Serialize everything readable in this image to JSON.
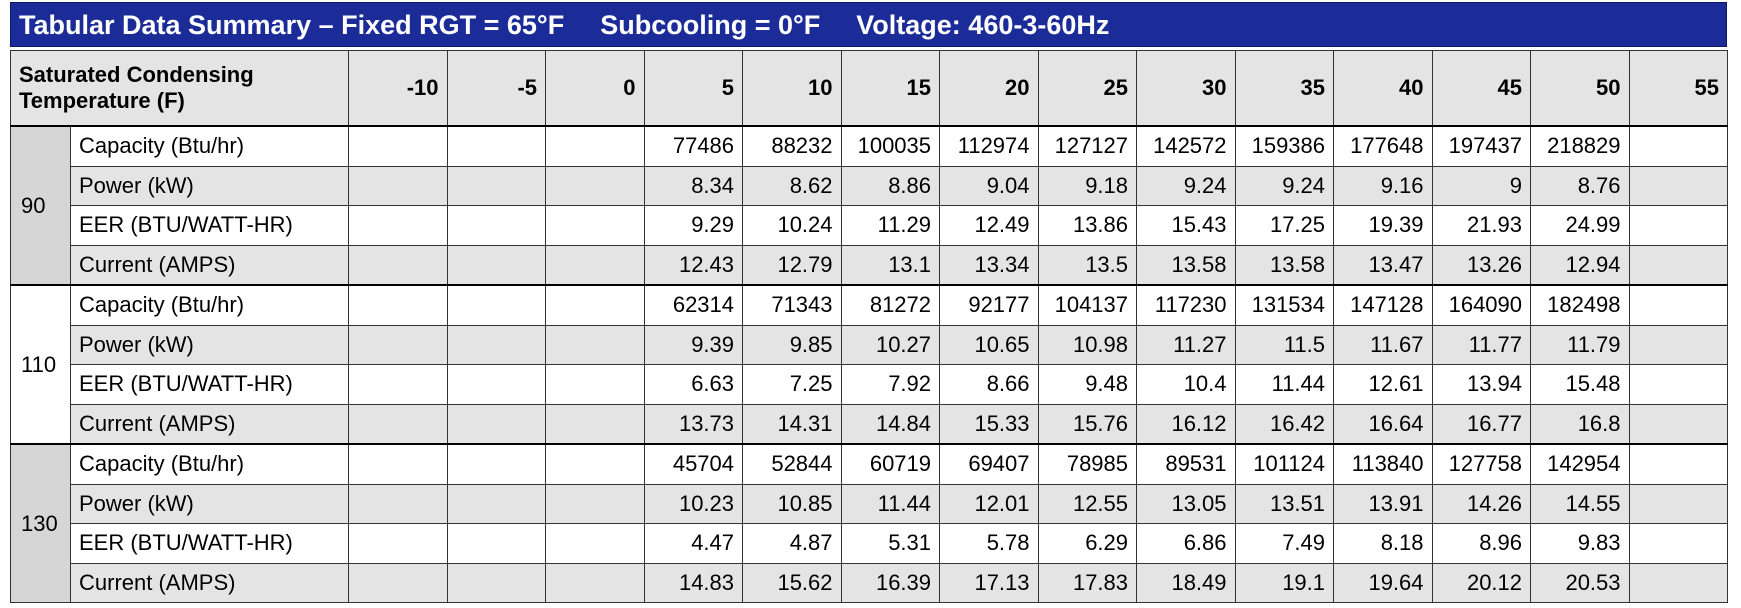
{
  "header": {
    "title": "Tabular Data Summary – Fixed RGT = 65°F",
    "subcooling": "Subcooling = 0°F",
    "voltage": "Voltage: 460-3-60Hz"
  },
  "table": {
    "header_label": "Saturated Condensing Temperature (F)",
    "columns": [
      -10,
      -5,
      0,
      5,
      10,
      15,
      20,
      25,
      30,
      35,
      40,
      45,
      50,
      55
    ],
    "groups": [
      {
        "label": "90",
        "rows": [
          {
            "label": "Capacity (Btu/hr)",
            "values": [
              null,
              null,
              null,
              77486,
              88232,
              100035,
              112974,
              127127,
              142572,
              159386,
              177648,
              197437,
              218829,
              null
            ]
          },
          {
            "label": "Power (kW)",
            "values": [
              null,
              null,
              null,
              8.34,
              8.62,
              8.86,
              9.04,
              9.18,
              9.24,
              9.24,
              9.16,
              9,
              8.76,
              null
            ]
          },
          {
            "label": "EER (BTU/WATT-HR)",
            "values": [
              null,
              null,
              null,
              9.29,
              10.24,
              11.29,
              12.49,
              13.86,
              15.43,
              17.25,
              19.39,
              21.93,
              24.99,
              null
            ]
          },
          {
            "label": "Current (AMPS)",
            "values": [
              null,
              null,
              null,
              12.43,
              12.79,
              13.1,
              13.34,
              13.5,
              13.58,
              13.58,
              13.47,
              13.26,
              12.94,
              null
            ]
          }
        ]
      },
      {
        "label": "110",
        "rows": [
          {
            "label": "Capacity (Btu/hr)",
            "values": [
              null,
              null,
              null,
              62314,
              71343,
              81272,
              92177,
              104137,
              117230,
              131534,
              147128,
              164090,
              182498,
              null
            ]
          },
          {
            "label": "Power (kW)",
            "values": [
              null,
              null,
              null,
              9.39,
              9.85,
              10.27,
              10.65,
              10.98,
              11.27,
              11.5,
              11.67,
              11.77,
              11.79,
              null
            ]
          },
          {
            "label": "EER (BTU/WATT-HR)",
            "values": [
              null,
              null,
              null,
              6.63,
              7.25,
              7.92,
              8.66,
              9.48,
              10.4,
              11.44,
              12.61,
              13.94,
              15.48,
              null
            ]
          },
          {
            "label": "Current (AMPS)",
            "values": [
              null,
              null,
              null,
              13.73,
              14.31,
              14.84,
              15.33,
              15.76,
              16.12,
              16.42,
              16.64,
              16.77,
              16.8,
              null
            ]
          }
        ]
      },
      {
        "label": "130",
        "rows": [
          {
            "label": "Capacity (Btu/hr)",
            "values": [
              null,
              null,
              null,
              45704,
              52844,
              60719,
              69407,
              78985,
              89531,
              101124,
              113840,
              127758,
              142954,
              null
            ]
          },
          {
            "label": "Power (kW)",
            "values": [
              null,
              null,
              null,
              10.23,
              10.85,
              11.44,
              12.01,
              12.55,
              13.05,
              13.51,
              13.91,
              14.26,
              14.55,
              null
            ]
          },
          {
            "label": "EER (BTU/WATT-HR)",
            "values": [
              null,
              null,
              null,
              4.47,
              4.87,
              5.31,
              5.78,
              6.29,
              6.86,
              7.49,
              8.18,
              8.96,
              9.83,
              null
            ]
          },
          {
            "label": "Current (AMPS)",
            "values": [
              null,
              null,
              null,
              14.83,
              15.62,
              16.39,
              17.13,
              17.83,
              18.49,
              19.1,
              19.64,
              20.12,
              20.53,
              null
            ]
          }
        ]
      }
    ]
  }
}
